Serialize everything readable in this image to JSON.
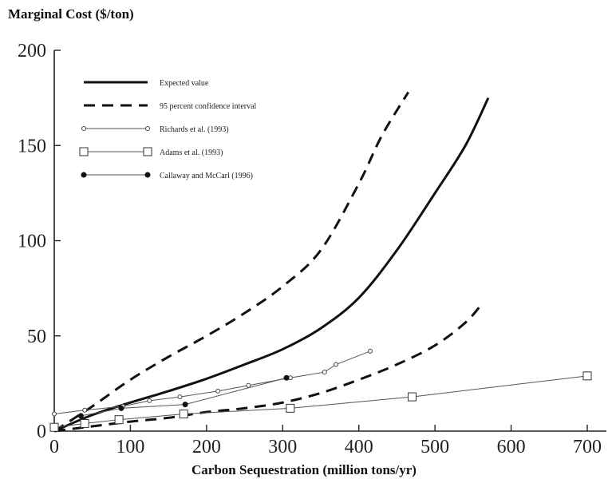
{
  "chart_data": {
    "type": "line",
    "title": "",
    "ylabel": "Marginal Cost ($/ton)",
    "xlabel": "Carbon Sequestration (million tons/yr)",
    "xlim": [
      0,
      720
    ],
    "ylim": [
      0,
      200
    ],
    "xticks": [
      "0",
      "100",
      "200",
      "300",
      "400",
      "500",
      "600",
      "700"
    ],
    "yticks": [
      "0",
      "50",
      "100",
      "150",
      "200"
    ],
    "legend_position": "top-left",
    "grid": false,
    "series": [
      {
        "name": "Expected value",
        "style": "solid-thick",
        "marker": "none",
        "x": [
          0,
          50,
          100,
          150,
          200,
          250,
          300,
          350,
          400,
          450,
          500,
          540,
          570
        ],
        "y": [
          0,
          8.5,
          15,
          21,
          27.5,
          35,
          43,
          54,
          70,
          95,
          125,
          150,
          175
        ]
      },
      {
        "name": "95 percent confidence interval",
        "style": "dashed-thick",
        "marker": "none",
        "x": [
          0,
          50,
          100,
          150,
          200,
          250,
          300,
          350,
          400,
          430,
          465
        ],
        "y": [
          0,
          13,
          27,
          39,
          50,
          62,
          76,
          95,
          130,
          155,
          178
        ]
      },
      {
        "name": "",
        "style": "dashed-thick",
        "marker": "none",
        "x": [
          0,
          50,
          100,
          150,
          200,
          250,
          300,
          350,
          400,
          450,
          500,
          540,
          562
        ],
        "y": [
          0,
          2.5,
          5,
          7,
          10,
          12,
          15,
          20,
          27,
          35,
          45,
          57,
          67
        ]
      },
      {
        "name": "Richards et al. (1993)",
        "style": "solid-thin",
        "marker": "circle-small",
        "x": [
          0,
          40,
          90,
          125,
          165,
          215,
          255,
          310,
          355,
          370,
          415
        ],
        "y": [
          9,
          11,
          13,
          16,
          18,
          21,
          24,
          28,
          31,
          35,
          42
        ]
      },
      {
        "name": "Adams et al. (1993)",
        "style": "solid-thin",
        "marker": "square-open",
        "x": [
          0,
          40,
          85,
          170,
          310,
          470,
          700
        ],
        "y": [
          2,
          4,
          6,
          9,
          12,
          18,
          29
        ]
      },
      {
        "name": "Callaway and McCarl (1996)",
        "style": "solid-thin",
        "marker": "circle-filled",
        "x": [
          35,
          88,
          172,
          305
        ],
        "y": [
          8,
          12,
          14,
          28
        ]
      }
    ]
  }
}
